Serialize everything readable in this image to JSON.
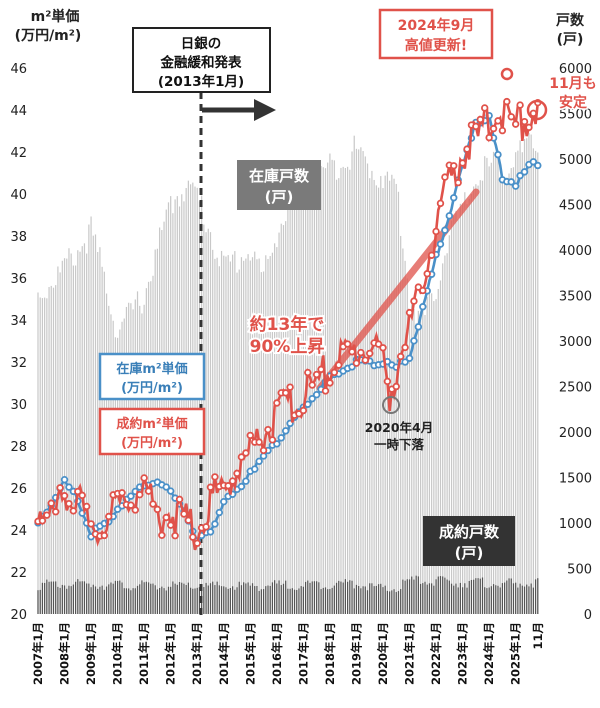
{
  "chart_data": {
    "type": "line",
    "y_left": {
      "title_line1": "m²単価",
      "title_line2": "(万円/m²)",
      "range": [
        20,
        46
      ],
      "ticks": [
        20,
        22,
        24,
        26,
        28,
        30,
        32,
        34,
        36,
        38,
        40,
        42,
        44,
        46
      ]
    },
    "y_right": {
      "title_line1": "戸数",
      "title_line2": "(戸)",
      "range": [
        0,
        6000
      ],
      "ticks": [
        0,
        500,
        1000,
        1500,
        2000,
        2500,
        3000,
        3500,
        4000,
        4500,
        5000,
        5500,
        6000
      ]
    },
    "x_labels": [
      "2007年1月",
      "2008年1月",
      "2009年1月",
      "2010年1月",
      "2011年1月",
      "2012年1月",
      "2013年1月",
      "2014年1月",
      "2015年1月",
      "2016年1月",
      "2017年1月",
      "2018年1月",
      "2019年1月",
      "2020年1月",
      "2021年1月",
      "2022年1月",
      "2023年1月",
      "2024年1月",
      "2025年1月",
      "11月"
    ],
    "series": [
      {
        "name": "在庫m²単価(万円/m²)",
        "color": "#4a90c8",
        "anchors": [
          [
            0,
            24.3
          ],
          [
            6,
            25.2
          ],
          [
            12,
            26.3
          ],
          [
            18,
            25.5
          ],
          [
            24,
            23.8
          ],
          [
            30,
            24.2
          ],
          [
            36,
            25.0
          ],
          [
            48,
            26.2
          ],
          [
            54,
            26.3
          ],
          [
            60,
            25.8
          ],
          [
            66,
            25.0
          ],
          [
            72,
            23.4
          ],
          [
            78,
            24.0
          ],
          [
            84,
            25.3
          ],
          [
            90,
            25.8
          ],
          [
            96,
            26.8
          ],
          [
            108,
            28.2
          ],
          [
            120,
            29.8
          ],
          [
            132,
            31.2
          ],
          [
            138,
            31.6
          ],
          [
            144,
            32.0
          ],
          [
            150,
            31.9
          ],
          [
            156,
            32.0
          ],
          [
            162,
            31.7
          ],
          [
            168,
            32.3
          ],
          [
            174,
            34.5
          ],
          [
            180,
            37.0
          ],
          [
            186,
            39.0
          ],
          [
            192,
            41.3
          ],
          [
            198,
            43.5
          ],
          [
            204,
            43.6
          ],
          [
            210,
            40.8
          ],
          [
            216,
            40.5
          ],
          [
            222,
            41.3
          ],
          [
            226,
            41.5
          ],
          [
            227,
            42.2
          ]
        ]
      },
      {
        "name": "成約m²単価(万円/m²)",
        "color": "#e0524a",
        "anchors": [
          [
            0,
            25.2
          ],
          [
            6,
            24.3
          ],
          [
            12,
            26.0
          ],
          [
            18,
            25.5
          ],
          [
            24,
            23.5
          ],
          [
            30,
            24.5
          ],
          [
            36,
            25.0
          ],
          [
            48,
            26.2
          ],
          [
            54,
            24.7
          ],
          [
            60,
            24.8
          ],
          [
            66,
            24.5
          ],
          [
            72,
            23.8
          ],
          [
            78,
            25.5
          ],
          [
            84,
            26.0
          ],
          [
            90,
            26.8
          ],
          [
            96,
            27.8
          ],
          [
            108,
            29.5
          ],
          [
            120,
            30.3
          ],
          [
            132,
            31.8
          ],
          [
            138,
            32.3
          ],
          [
            144,
            32.5
          ],
          [
            150,
            32.8
          ],
          [
            156,
            32.2
          ],
          [
            159,
            30.2
          ],
          [
            162,
            31.8
          ],
          [
            168,
            33.5
          ],
          [
            174,
            35.6
          ],
          [
            180,
            38.5
          ],
          [
            186,
            40.5
          ],
          [
            192,
            42.0
          ],
          [
            198,
            42.5
          ],
          [
            204,
            43.5
          ],
          [
            210,
            44.0
          ],
          [
            216,
            43.2
          ],
          [
            222,
            43.7
          ],
          [
            227,
            44.2
          ]
        ]
      },
      {
        "name": "在庫戸数(戸)",
        "anchors": [
          [
            0,
            3500
          ],
          [
            12,
            3800
          ],
          [
            24,
            4200
          ],
          [
            30,
            3700
          ],
          [
            36,
            3100
          ],
          [
            48,
            3500
          ],
          [
            60,
            4500
          ],
          [
            66,
            4700
          ],
          [
            72,
            4600
          ],
          [
            84,
            3800
          ],
          [
            96,
            4000
          ],
          [
            102,
            3700
          ],
          [
            108,
            4200
          ],
          [
            120,
            4800
          ],
          [
            132,
            4900
          ],
          [
            144,
            5100
          ],
          [
            150,
            4900
          ],
          [
            156,
            4800
          ],
          [
            162,
            4700
          ],
          [
            168,
            3500
          ],
          [
            174,
            3200
          ],
          [
            180,
            3600
          ],
          [
            186,
            4200
          ],
          [
            192,
            4400
          ],
          [
            198,
            4800
          ],
          [
            204,
            4900
          ],
          [
            216,
            5000
          ],
          [
            227,
            5200
          ]
        ]
      },
      {
        "name": "成約戸数(戸)",
        "anchors": [
          [
            0,
            350
          ],
          [
            24,
            360
          ],
          [
            48,
            340
          ],
          [
            72,
            330
          ],
          [
            96,
            340
          ],
          [
            120,
            350
          ],
          [
            144,
            370
          ],
          [
            156,
            300
          ],
          [
            162,
            310
          ],
          [
            168,
            400
          ],
          [
            192,
            380
          ],
          [
            216,
            360
          ],
          [
            227,
            380
          ]
        ]
      }
    ],
    "point_labels": {
      "peak_2024_09": "2024年9月高値更新!",
      "nov": "11月も安定"
    },
    "annotations": {
      "boj_line1": "日銀の",
      "boj_line2": "金融緩和発表",
      "boj_line3": "(2013年1月)",
      "peak_line1": "2024年9月",
      "peak_line2": "高値更新!",
      "nov_line1": "11月も",
      "nov_line2": "安定",
      "inventory_line1": "在庫戸数",
      "inventory_line2": "(戸)",
      "growth_line1": "約13年で",
      "growth_line2": "90%上昇",
      "inv_price_line1": "在庫m²単価",
      "inv_price_line2": "(万円/m²)",
      "deal_price_line1": "成約m²単価",
      "deal_price_line2": "(万円/m²)",
      "dip_line1": "2020年4月",
      "dip_line2": "一時下落",
      "deals_line1": "成約戸数",
      "deals_line2": "(戸)"
    },
    "colors": {
      "inventory_line": "#4a90c8",
      "deal_line": "#e0524a",
      "bars_inventory": "#c8c8c8",
      "bars_deals": "#555555",
      "boj_box": "#222222",
      "gray_box": "#7a7a7a"
    }
  }
}
